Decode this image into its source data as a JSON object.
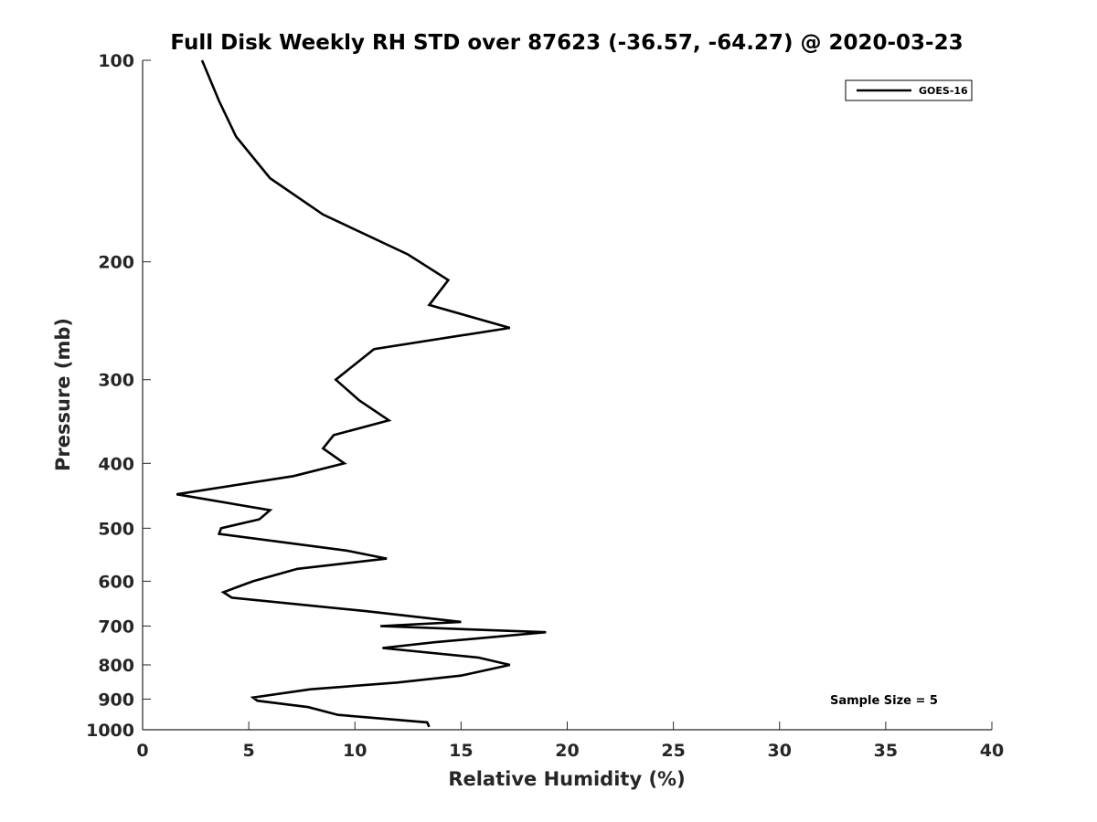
{
  "chart_data": {
    "type": "line",
    "title": "Full Disk Weekly RH STD over 87623 (-36.57, -64.27) @ 2020-03-23",
    "xlabel": "Relative Humidity (%)",
    "ylabel": "Pressure (mb)",
    "xlim": [
      0,
      40
    ],
    "ylim": [
      100,
      1000
    ],
    "y_scale": "log",
    "y_reversed": true,
    "grid": false,
    "legend_position": "top-right",
    "x_ticks": [
      0,
      5,
      10,
      15,
      20,
      25,
      30,
      35,
      40
    ],
    "x_tick_labels": [
      "0",
      "5",
      "10",
      "15",
      "20",
      "25",
      "30",
      "35",
      "40"
    ],
    "y_ticks": [
      100,
      200,
      300,
      400,
      500,
      600,
      700,
      800,
      900,
      1000
    ],
    "y_tick_labels": [
      "100",
      "200",
      "300",
      "400",
      "500",
      "600",
      "700",
      "800",
      "900",
      "1000"
    ],
    "series": [
      {
        "name": "GOES-16",
        "color": "#000000",
        "x": [
          2.8,
          3.6,
          4.4,
          6.0,
          8.5,
          12.5,
          14.4,
          13.5,
          17.3,
          10.9,
          9.1,
          10.2,
          11.6,
          9.0,
          8.5,
          9.5,
          7.1,
          1.6,
          6.0,
          5.5,
          3.7,
          3.6,
          9.6,
          11.5,
          7.3,
          5.2,
          3.8,
          4.2,
          10.5,
          15.0,
          11.2,
          19.0,
          13.8,
          11.3,
          15.8,
          17.3,
          15.0,
          12.0,
          7.9,
          5.2,
          5.4,
          7.8,
          9.2,
          13.4,
          13.5
        ],
        "y": [
          100,
          115,
          130,
          150,
          170,
          195,
          213,
          232,
          251,
          270,
          300,
          322,
          345,
          363,
          380,
          400,
          418,
          445,
          470,
          485,
          500,
          510,
          540,
          555,
          575,
          600,
          623,
          635,
          665,
          690,
          700,
          715,
          740,
          755,
          780,
          800,
          830,
          850,
          870,
          895,
          905,
          925,
          950,
          975,
          990
        ]
      }
    ],
    "annotation": "Sample Size = 5"
  }
}
